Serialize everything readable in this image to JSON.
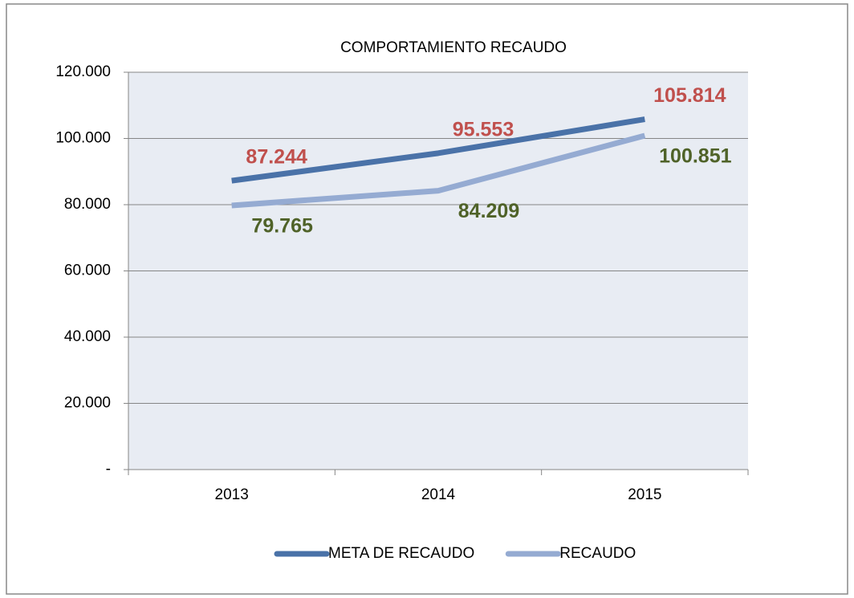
{
  "chart_data": {
    "type": "line",
    "title": "COMPORTAMIENTO RECAUDO",
    "categories": [
      "2013",
      "2014",
      "2015"
    ],
    "series": [
      {
        "name": "META DE RECAUDO",
        "color": "#4a72a8",
        "label_color": "#c0504d",
        "values": [
          87244,
          95553,
          105814
        ],
        "value_labels": [
          "87.244",
          "95.553",
          "105.814"
        ]
      },
      {
        "name": "RECAUDO",
        "color": "#95abd2",
        "label_color": "#4f6228",
        "values": [
          79765,
          84209,
          100851
        ],
        "value_labels": [
          "79.765",
          "84.209",
          "100.851"
        ]
      }
    ],
    "ylim": [
      0,
      120000
    ],
    "yticks": [
      {
        "value": 0,
        "label": "-"
      },
      {
        "value": 20000,
        "label": "20.000"
      },
      {
        "value": 40000,
        "label": "40.000"
      },
      {
        "value": 60000,
        "label": "60.000"
      },
      {
        "value": 80000,
        "label": "80.000"
      },
      {
        "value": 100000,
        "label": "100.000"
      },
      {
        "value": 120000,
        "label": "120.000"
      }
    ],
    "grid": true,
    "legend": "bottom"
  }
}
